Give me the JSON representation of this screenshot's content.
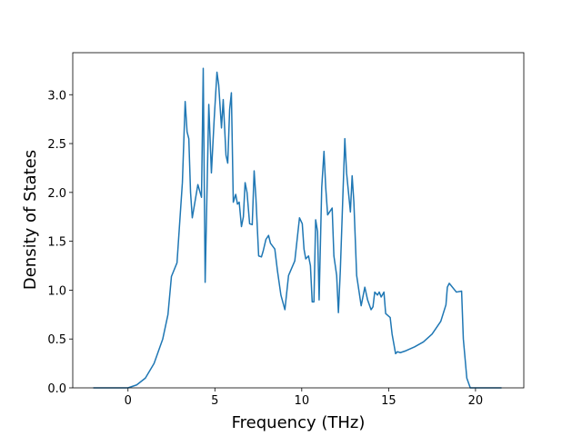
{
  "chart_data": {
    "type": "line",
    "x_label": "Frequency (THz)",
    "y_label": "Density of States",
    "xlim": [
      -3.18,
      22.78
    ],
    "ylim": [
      0,
      3.43
    ],
    "xticks": [
      0,
      5,
      10,
      15,
      20
    ],
    "yticks": [
      {
        "value": 0,
        "label": "0.0"
      },
      {
        "value": 0.5,
        "label": "0.5"
      },
      {
        "value": 1,
        "label": "1.0"
      },
      {
        "value": 1.5,
        "label": "1.5"
      },
      {
        "value": 2,
        "label": "2.0"
      },
      {
        "value": 2.5,
        "label": "2.5"
      },
      {
        "value": 3,
        "label": "3.0"
      }
    ],
    "series": [
      {
        "color": "#1f77b4",
        "x": [
          -2.0,
          -1.0,
          0.0,
          0.5,
          1.0,
          1.5,
          2.0,
          2.3,
          2.5,
          2.82,
          3.13,
          3.29,
          3.4,
          3.5,
          3.6,
          3.7,
          4.02,
          4.23,
          4.33,
          4.44,
          4.65,
          4.8,
          4.96,
          5.12,
          5.22,
          5.38,
          5.48,
          5.64,
          5.74,
          5.85,
          5.95,
          6.06,
          6.2,
          6.3,
          6.4,
          6.53,
          6.64,
          6.74,
          6.85,
          7.0,
          7.15,
          7.26,
          7.36,
          7.52,
          7.68,
          7.78,
          7.94,
          8.09,
          8.2,
          8.45,
          8.6,
          8.8,
          9.03,
          9.24,
          9.6,
          9.87,
          10.03,
          10.13,
          10.23,
          10.39,
          10.5,
          10.6,
          10.7,
          10.8,
          10.91,
          11.0,
          11.15,
          11.28,
          11.38,
          11.49,
          11.75,
          11.85,
          12.01,
          12.11,
          12.22,
          12.48,
          12.58,
          12.8,
          12.9,
          13.0,
          13.16,
          13.42,
          13.63,
          13.79,
          13.99,
          14.1,
          14.2,
          14.36,
          14.46,
          14.57,
          14.73,
          14.83,
          15.09,
          15.2,
          15.4,
          15.51,
          15.67,
          16.0,
          16.5,
          17.0,
          17.5,
          18.0,
          18.3,
          18.38,
          18.49,
          18.9,
          19.2,
          19.3,
          19.5,
          19.7,
          20.5,
          21.5
        ],
        "values": [
          0,
          0,
          0,
          0.03,
          0.1,
          0.25,
          0.5,
          0.75,
          1.14,
          1.28,
          2.1,
          2.93,
          2.62,
          2.55,
          2.0,
          1.74,
          2.08,
          1.95,
          3.27,
          1.08,
          2.9,
          2.2,
          2.75,
          3.23,
          3.1,
          2.66,
          2.95,
          2.38,
          2.3,
          2.85,
          3.02,
          1.9,
          1.98,
          1.88,
          1.9,
          1.65,
          1.75,
          2.1,
          2.0,
          1.68,
          1.67,
          2.22,
          1.95,
          1.35,
          1.34,
          1.4,
          1.52,
          1.56,
          1.48,
          1.42,
          1.2,
          0.95,
          0.8,
          1.15,
          1.3,
          1.74,
          1.68,
          1.42,
          1.32,
          1.35,
          1.25,
          0.88,
          0.88,
          1.72,
          1.6,
          0.9,
          2.05,
          2.42,
          2.05,
          1.77,
          1.84,
          1.35,
          1.15,
          0.77,
          1.2,
          2.55,
          2.2,
          1.8,
          2.17,
          1.9,
          1.15,
          0.84,
          1.03,
          0.9,
          0.8,
          0.83,
          0.98,
          0.95,
          0.98,
          0.93,
          0.98,
          0.76,
          0.72,
          0.55,
          0.35,
          0.37,
          0.36,
          0.38,
          0.42,
          0.47,
          0.55,
          0.68,
          0.85,
          1.03,
          1.07,
          0.98,
          0.99,
          0.5,
          0.1,
          0,
          0,
          0
        ]
      }
    ]
  }
}
